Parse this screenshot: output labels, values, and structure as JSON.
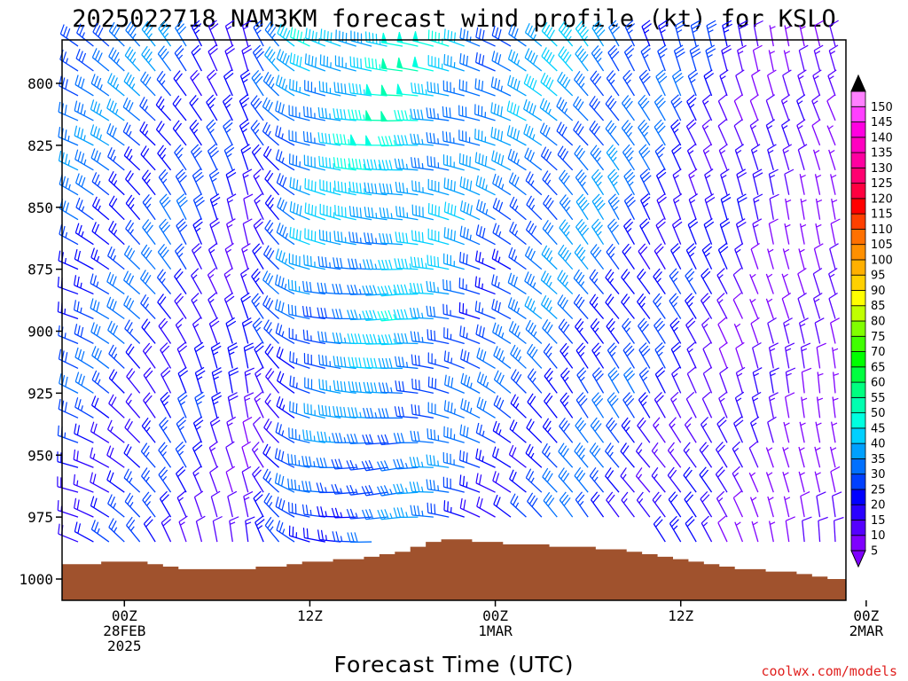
{
  "chart_data": {
    "type": "wind_profile",
    "title": "2025022718 NAM3KM forecast wind profile (kt) for KSLO",
    "xlabel": "Forecast Time (UTC)",
    "credit": "coolwx.com/models",
    "ylim": [
      1010,
      780
    ],
    "y_ticks": [
      800,
      825,
      850,
      875,
      900,
      925,
      950,
      975,
      1000
    ],
    "x_range_hours": [
      -3,
      46
    ],
    "x_ticks": [
      {
        "hour": 0,
        "lines": [
          "00Z",
          "28FEB",
          "2025"
        ]
      },
      {
        "hour": 12,
        "lines": [
          "12Z"
        ]
      },
      {
        "hour": 24,
        "lines": [
          "00Z",
          "1MAR"
        ]
      },
      {
        "hour": 36,
        "lines": [
          "12Z"
        ]
      },
      {
        "hour": 48,
        "lines": [
          "00Z",
          "2MAR"
        ]
      }
    ],
    "colorbar_levels": [
      5,
      10,
      15,
      20,
      25,
      30,
      35,
      40,
      45,
      50,
      55,
      60,
      65,
      70,
      75,
      80,
      85,
      90,
      95,
      100,
      105,
      110,
      115,
      120,
      125,
      130,
      135,
      140,
      145,
      150
    ],
    "colorbar_colors": [
      "#7f00ff",
      "#5500ff",
      "#2a00ff",
      "#0000ff",
      "#0040ff",
      "#0070ff",
      "#00a0ff",
      "#00d0ff",
      "#00ffe0",
      "#00ffb0",
      "#00ff80",
      "#00ff40",
      "#00ff00",
      "#40ff00",
      "#80ff00",
      "#c0ff00",
      "#ffff00",
      "#ffd000",
      "#ffb000",
      "#ff9000",
      "#ff7000",
      "#ff4000",
      "#ff0000",
      "#ff0040",
      "#ff0070",
      "#ff00a0",
      "#ff00c0",
      "#ff00e0",
      "#ff40ff",
      "#ff80ff"
    ],
    "surface_pressure": [
      {
        "hour": -3,
        "p": 994
      },
      {
        "hour": -2,
        "p": 994
      },
      {
        "hour": -1,
        "p": 993
      },
      {
        "hour": 0,
        "p": 993
      },
      {
        "hour": 1,
        "p": 993
      },
      {
        "hour": 2,
        "p": 994
      },
      {
        "hour": 3,
        "p": 995
      },
      {
        "hour": 4,
        "p": 996
      },
      {
        "hour": 5,
        "p": 996
      },
      {
        "hour": 6,
        "p": 996
      },
      {
        "hour": 7,
        "p": 996
      },
      {
        "hour": 8,
        "p": 996
      },
      {
        "hour": 9,
        "p": 995
      },
      {
        "hour": 10,
        "p": 995
      },
      {
        "hour": 11,
        "p": 994
      },
      {
        "hour": 12,
        "p": 993
      },
      {
        "hour": 13,
        "p": 993
      },
      {
        "hour": 14,
        "p": 992
      },
      {
        "hour": 15,
        "p": 992
      },
      {
        "hour": 16,
        "p": 991
      },
      {
        "hour": 17,
        "p": 990
      },
      {
        "hour": 18,
        "p": 989
      },
      {
        "hour": 19,
        "p": 987
      },
      {
        "hour": 20,
        "p": 985
      },
      {
        "hour": 21,
        "p": 984
      },
      {
        "hour": 22,
        "p": 984
      },
      {
        "hour": 23,
        "p": 985
      },
      {
        "hour": 24,
        "p": 985
      },
      {
        "hour": 25,
        "p": 986
      },
      {
        "hour": 26,
        "p": 986
      },
      {
        "hour": 27,
        "p": 986
      },
      {
        "hour": 28,
        "p": 987
      },
      {
        "hour": 29,
        "p": 987
      },
      {
        "hour": 30,
        "p": 987
      },
      {
        "hour": 31,
        "p": 988
      },
      {
        "hour": 32,
        "p": 988
      },
      {
        "hour": 33,
        "p": 989
      },
      {
        "hour": 34,
        "p": 990
      },
      {
        "hour": 35,
        "p": 991
      },
      {
        "hour": 36,
        "p": 992
      },
      {
        "hour": 37,
        "p": 993
      },
      {
        "hour": 38,
        "p": 994
      },
      {
        "hour": 39,
        "p": 995
      },
      {
        "hour": 40,
        "p": 996
      },
      {
        "hour": 41,
        "p": 996
      },
      {
        "hour": 42,
        "p": 997
      },
      {
        "hour": 43,
        "p": 997
      },
      {
        "hour": 44,
        "p": 998
      },
      {
        "hour": 45,
        "p": 999
      },
      {
        "hour": 46,
        "p": 1000
      }
    ],
    "wind_levels_hpa": [
      785,
      795,
      805,
      815,
      825,
      835,
      845,
      855,
      865,
      875,
      885,
      895,
      905,
      915,
      925,
      935,
      945,
      955,
      965,
      975,
      985,
      995
    ],
    "wind_keyframes": [
      {
        "hour": -3,
        "dir": 300,
        "speed": 33
      },
      {
        "hour": 3,
        "dir": 320,
        "speed": 30
      },
      {
        "hour": 8,
        "dir": 340,
        "speed": 20
      },
      {
        "hour": 12,
        "dir": 290,
        "speed": 40
      },
      {
        "hour": 18,
        "dir": 275,
        "speed": 48
      },
      {
        "hour": 24,
        "dir": 290,
        "speed": 35
      },
      {
        "hour": 30,
        "dir": 320,
        "speed": 38
      },
      {
        "hour": 36,
        "dir": 340,
        "speed": 25
      },
      {
        "hour": 42,
        "dir": 345,
        "speed": 12
      },
      {
        "hour": 46,
        "dir": 340,
        "speed": 8
      }
    ]
  }
}
